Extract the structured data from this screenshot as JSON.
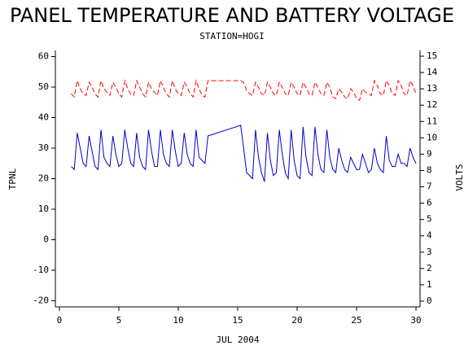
{
  "chart_data": {
    "type": "line",
    "title": "PANEL TEMPERATURE AND BATTERY VOLTAGE",
    "subtitle": "STATION=HOGI",
    "x_label": "JUL 2004",
    "y_label": "TPNL",
    "y2_label": "VOLTS",
    "x": [
      1,
      1.25,
      1.5,
      1.75,
      2,
      2.25,
      2.5,
      2.75,
      3,
      3.25,
      3.5,
      3.75,
      4,
      4.25,
      4.5,
      4.75,
      5,
      5.25,
      5.5,
      5.75,
      6,
      6.25,
      6.5,
      6.75,
      7,
      7.25,
      7.5,
      7.75,
      8,
      8.25,
      8.5,
      8.75,
      9,
      9.25,
      9.5,
      9.75,
      10,
      10.25,
      10.5,
      10.75,
      11,
      11.25,
      11.5,
      11.75,
      12,
      12.25,
      12.5,
      15.25,
      15.5,
      15.75,
      16,
      16.25,
      16.5,
      16.75,
      17,
      17.25,
      17.5,
      17.75,
      18,
      18.25,
      18.5,
      18.75,
      19,
      19.25,
      19.5,
      19.75,
      20,
      20.25,
      20.5,
      20.75,
      21,
      21.25,
      21.5,
      21.75,
      22,
      22.25,
      22.5,
      22.75,
      23,
      23.25,
      23.5,
      23.75,
      24,
      24.25,
      24.5,
      24.75,
      25,
      25.25,
      25.5,
      25.75,
      26,
      26.25,
      26.5,
      26.75,
      27,
      27.25,
      27.5,
      27.75,
      28,
      28.25,
      28.5,
      28.75,
      29,
      29.25,
      29.5,
      29.75,
      30
    ],
    "series": [
      {
        "name": "TPNL",
        "color": "#0000cc",
        "linestyle": "solid",
        "values": [
          24,
          23,
          35,
          30,
          25,
          24,
          34,
          29,
          24,
          23,
          36,
          27,
          25,
          24,
          34,
          28,
          24,
          25,
          36,
          30,
          25,
          24,
          35,
          27,
          24,
          23,
          36,
          29,
          24,
          24,
          36,
          28,
          25,
          24,
          36,
          29,
          24,
          25,
          35,
          28,
          25,
          24,
          36,
          27,
          26,
          25,
          34,
          37.5,
          30,
          22,
          21,
          20,
          36,
          27,
          22,
          19,
          35,
          26,
          21,
          22,
          36,
          28,
          22,
          20,
          36,
          26,
          21,
          20,
          37,
          27,
          22,
          21,
          37,
          28,
          23,
          22,
          36,
          27,
          23,
          22,
          30,
          26,
          23,
          22,
          27,
          25,
          23,
          23,
          28,
          25,
          22,
          23,
          30,
          25,
          23,
          22,
          34,
          26,
          24,
          24,
          28,
          25,
          25,
          24,
          30,
          27,
          25
        ]
      },
      {
        "name": "VOLTS",
        "color": "#ff0000",
        "linestyle": "dashed",
        "axis": "y2",
        "values": [
          12.7,
          12.5,
          13.5,
          13.0,
          12.7,
          12.6,
          13.4,
          13.1,
          12.7,
          12.5,
          13.5,
          13.0,
          12.8,
          12.6,
          13.4,
          13.1,
          12.7,
          12.5,
          13.5,
          13.0,
          12.7,
          12.6,
          13.5,
          13.1,
          12.7,
          12.5,
          13.4,
          13.0,
          12.8,
          12.6,
          13.5,
          13.1,
          12.7,
          12.5,
          13.5,
          13.0,
          12.7,
          12.6,
          13.4,
          13.1,
          12.7,
          12.5,
          13.5,
          13.0,
          12.6,
          12.5,
          13.5,
          13.5,
          13.4,
          12.9,
          12.7,
          12.6,
          13.4,
          13.1,
          12.7,
          12.6,
          13.4,
          13.1,
          12.7,
          12.6,
          13.4,
          13.1,
          12.7,
          12.6,
          13.4,
          13.1,
          12.7,
          12.6,
          13.4,
          13.1,
          12.7,
          12.6,
          13.4,
          13.1,
          12.7,
          12.6,
          13.4,
          13.1,
          12.5,
          12.4,
          13.0,
          12.8,
          12.5,
          12.4,
          13.0,
          12.8,
          12.4,
          12.3,
          13.0,
          12.8,
          12.7,
          12.6,
          13.5,
          13.2,
          12.7,
          12.6,
          13.5,
          13.2,
          12.7,
          12.6,
          13.5,
          13.2,
          12.7,
          12.6,
          13.5,
          13.2,
          12.7
        ]
      }
    ],
    "xlim": [
      -0.34,
      30.34
    ],
    "xticks": [
      0,
      5,
      10,
      15,
      20,
      25,
      30
    ],
    "ylim": [
      -22,
      62
    ],
    "yticks": [
      -20,
      -10,
      0,
      10,
      20,
      30,
      40,
      50,
      60
    ],
    "y2lim": [
      -0.35,
      15.35
    ],
    "y2ticks": [
      0,
      1,
      2,
      3,
      4,
      5,
      6,
      7,
      8,
      9,
      10,
      11,
      12,
      13,
      14,
      15
    ]
  }
}
